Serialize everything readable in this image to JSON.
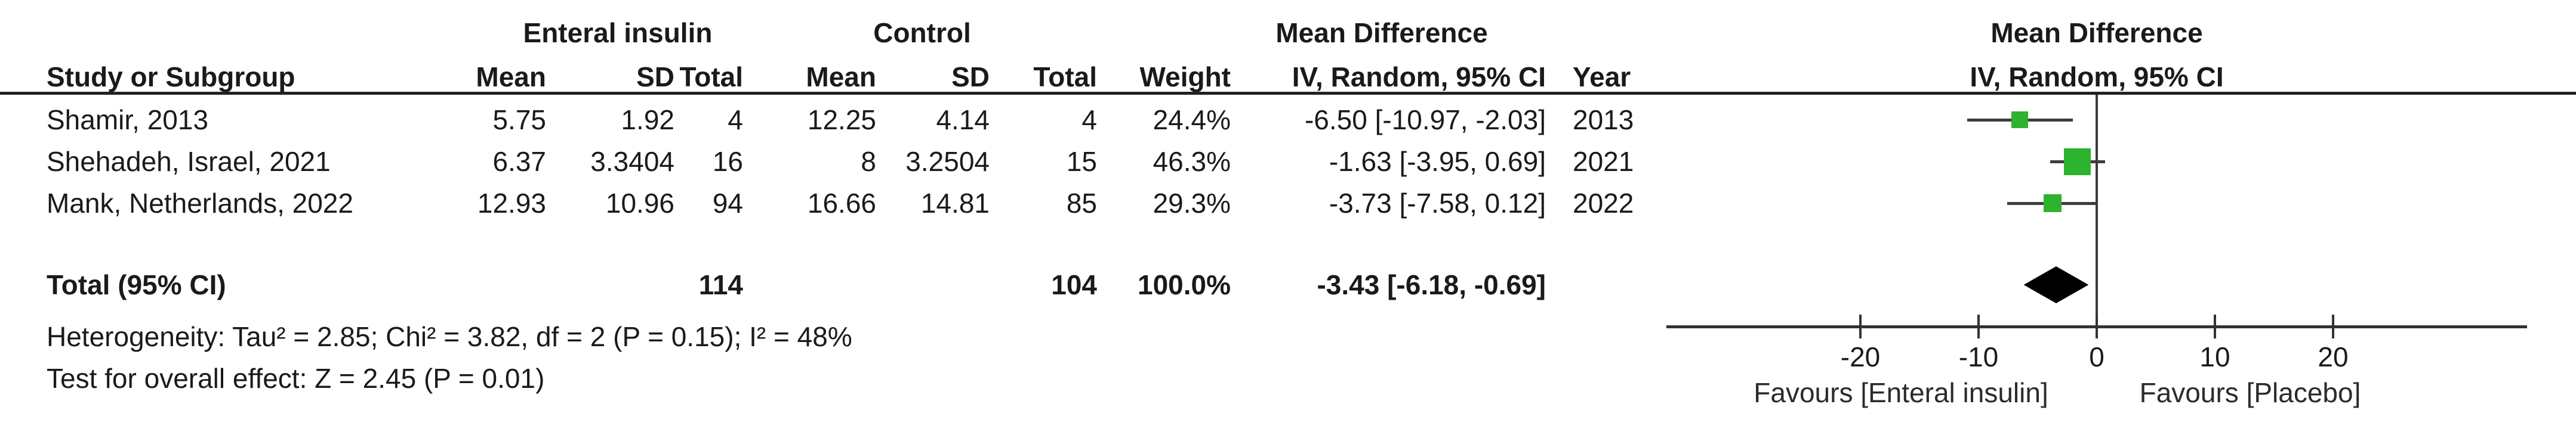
{
  "header": {
    "study": "Study or Subgroup",
    "group1_label": "Enteral insulin",
    "group2_label": "Control",
    "mean": "Mean",
    "sd": "SD",
    "total": "Total",
    "weight": "Weight",
    "md_label": "Mean Difference",
    "md_sub": "IV, Random, 95% CI",
    "year": "Year",
    "plot_label": "Mean Difference",
    "plot_sub": "IV, Random, 95% CI"
  },
  "rows": [
    {
      "study": "Shamir, 2013",
      "mean1": "5.75",
      "sd1": "1.92",
      "total1": "4",
      "mean2": "12.25",
      "sd2": "4.14",
      "total2": "4",
      "weight": "24.4%",
      "md_ci": "-6.50 [-10.97, -2.03]",
      "year": "2013"
    },
    {
      "study": "Shehadeh, Israel, 2021",
      "mean1": "6.37",
      "sd1": "3.3404",
      "total1": "16",
      "mean2": "8",
      "sd2": "3.2504",
      "total2": "15",
      "weight": "46.3%",
      "md_ci": "-1.63 [-3.95, 0.69]",
      "year": "2021"
    },
    {
      "study": "Mank, Netherlands, 2022",
      "mean1": "12.93",
      "sd1": "10.96",
      "total1": "94",
      "mean2": "16.66",
      "sd2": "14.81",
      "total2": "85",
      "weight": "29.3%",
      "md_ci": "-3.73 [-7.58, 0.12]",
      "year": "2022"
    }
  ],
  "total_row": {
    "label": "Total (95% CI)",
    "total1": "114",
    "total2": "104",
    "weight": "100.0%",
    "md_ci": "-3.43 [-6.18, -0.69]"
  },
  "footnotes": {
    "heterogeneity": "Heterogeneity: Tau² = 2.85; Chi² = 3.82, df = 2 (P = 0.15); I² = 48%",
    "overall_effect": "Test for overall effect: Z = 2.45 (P = 0.01)"
  },
  "chart_data": {
    "type": "forest",
    "effect_measure": "Mean Difference, IV, Random, 95% CI",
    "x_axis": {
      "ticks": [
        -20,
        -10,
        0,
        10,
        20
      ],
      "range": [
        -36.4,
        36.4
      ],
      "zero_line": 0
    },
    "studies": [
      {
        "name": "Shamir, 2013",
        "md": -6.5,
        "ci_low": -10.97,
        "ci_high": -2.03,
        "weight_pct": 24.4,
        "year": 2013
      },
      {
        "name": "Shehadeh, Israel, 2021",
        "md": -1.63,
        "ci_low": -3.95,
        "ci_high": 0.69,
        "weight_pct": 46.3,
        "year": 2021
      },
      {
        "name": "Mank, Netherlands, 2022",
        "md": -3.73,
        "ci_low": -7.58,
        "ci_high": 0.12,
        "weight_pct": 29.3,
        "year": 2022
      }
    ],
    "total": {
      "md": -3.43,
      "ci_low": -6.18,
      "ci_high": -0.69,
      "n_treatment": 114,
      "n_control": 104,
      "weight_pct": 100.0
    },
    "heterogeneity": {
      "tau2": 2.85,
      "chi2": 3.82,
      "df": 2,
      "p": 0.15,
      "i2_pct": 48
    },
    "overall_effect": {
      "z": 2.45,
      "p": 0.01
    },
    "favours_left": "Favours [Enteral insulin]",
    "favours_right": "Favours [Placebo]",
    "marker_color": "#2db32d",
    "diamond_color": "#000000"
  }
}
